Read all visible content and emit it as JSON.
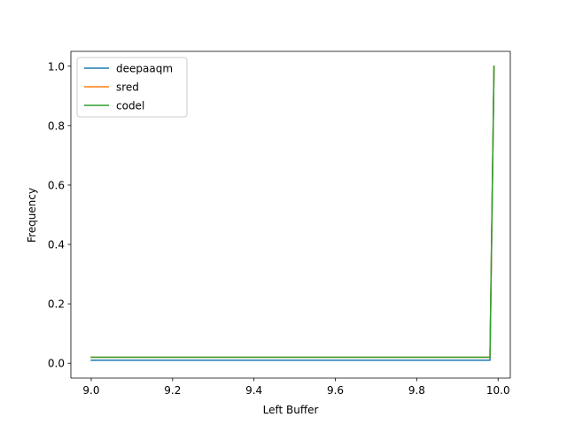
{
  "chart_data": {
    "type": "line",
    "xlabel": "Left Buffer",
    "ylabel": "Frequency",
    "xlim": [
      8.95,
      10.03
    ],
    "ylim": [
      -0.05,
      1.05
    ],
    "xticks": [
      "9.0",
      "9.2",
      "9.4",
      "9.6",
      "9.8",
      "10.0"
    ],
    "yticks": [
      "0.0",
      "0.2",
      "0.4",
      "0.6",
      "0.8",
      "1.0"
    ],
    "grid": false,
    "legend_position": "top-left",
    "series": [
      {
        "name": "deepaaqm",
        "color": "#1f77b4",
        "x": [
          9.0,
          9.98,
          9.99
        ],
        "y": [
          0.01,
          0.01,
          1.0
        ]
      },
      {
        "name": "sred",
        "color": "#ff7f0e",
        "x": [
          9.0,
          9.98,
          9.99
        ],
        "y": [
          0.02,
          0.02,
          1.0
        ]
      },
      {
        "name": "codel",
        "color": "#2ca02c",
        "x": [
          9.0,
          9.98,
          9.99
        ],
        "y": [
          0.02,
          0.02,
          1.0
        ]
      }
    ]
  }
}
